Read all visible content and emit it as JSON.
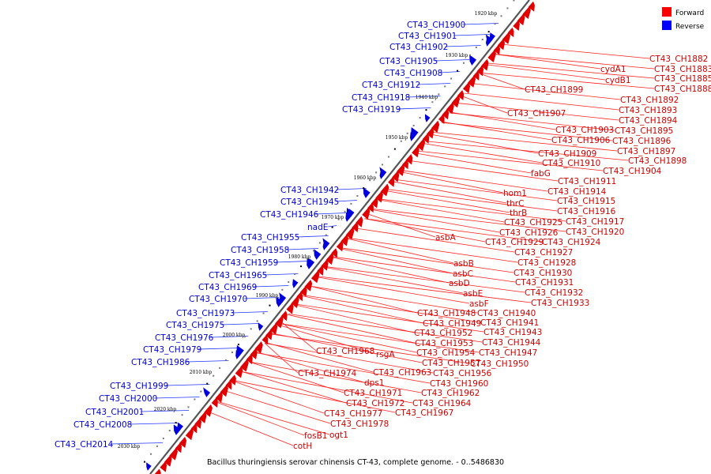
{
  "caption": "Bacillus thuringiensis serovar chinensis CT-43, complete genome. - 0..5486830",
  "legend": [
    {
      "label": "Forward",
      "color": "#ff0000"
    },
    {
      "label": "Reverse",
      "color": "#0000ff"
    }
  ],
  "colors": {
    "forward": "#e00000",
    "reverse": "#0000dd",
    "forward_label": "#cc0000",
    "reverse_label": "#0000cc",
    "backbone": "#555555"
  },
  "ticks": [
    "1920 kbp",
    "1930 kbp",
    "1940 kbp",
    "1950 kbp",
    "1960 kbp",
    "1970 kbp",
    "1980 kbp",
    "1990 kbp",
    "2000 kbp",
    "2010 kbp",
    "2020 kbp",
    "2030 kbp"
  ],
  "forward_labels": [
    "CT43_CH1882",
    "CT43_CH1883",
    "cydA1",
    "CT43_CH1885",
    "cydB1",
    "CT43_CH1888",
    "CT43_CH1899",
    "CT43_CH1892",
    "CT43_CH1893",
    "CT43_CH1907",
    "CT43_CH1894",
    "CT43_CH1903",
    "CT43_CH1895",
    "CT43_CH1906",
    "CT43_CH1896",
    "CT43_CH1897",
    "CT43_CH1909",
    "CT43_CH1898",
    "CT43_CH1910",
    "CT43_CH1904",
    "fabG",
    "CT43_CH1911",
    "hom1",
    "CT43_CH1914",
    "thrC",
    "CT43_CH1915",
    "thrB",
    "CT43_CH1916",
    "CT43_CH1925",
    "CT43_CH1917",
    "CT43_CH1926",
    "CT43_CH1920",
    "asbA",
    "CT43_CH1929",
    "CT43_CH1924",
    "CT43_CH1927",
    "asbB",
    "CT43_CH1928",
    "asbC",
    "CT43_CH1930",
    "asbD",
    "CT43_CH1931",
    "asbE",
    "CT43_CH1932",
    "asbF",
    "CT43_CH1933",
    "CT43_CH1948",
    "CT43_CH1940",
    "CT43_CH1949",
    "CT43_CH1941",
    "CT43_CH1952",
    "CT43_CH1943",
    "CT43_CH1953",
    "CT43_CH1944",
    "CT43_CH1968",
    "CT43_CH1954",
    "CT43_CH1947",
    "rsgA",
    "CT43_CH1957",
    "CT43_CH1950",
    "CT43_CH1974",
    "CT43_CH1963",
    "CT43_CH1956",
    "dps1",
    "CT43_CH1960",
    "CT43_CH1971",
    "CT43_CH1962",
    "CT43_CH1972",
    "CT43_CH1964",
    "CT43_CH1977",
    "CT43_CH1967",
    "CT43_CH1978",
    "fosB1",
    "ogt1",
    "cotH"
  ],
  "reverse_labels": [
    "CT43_CH1900",
    "CT43_CH1901",
    "CT43_CH1902",
    "CT43_CH1905",
    "CT43_CH1908",
    "CT43_CH1912",
    "CT43_CH1918",
    "CT43_CH1919",
    "CT43_CH1942",
    "CT43_CH1945",
    "CT43_CH1946",
    "nadE",
    "CT43_CH1955",
    "CT43_CH1958",
    "CT43_CH1959",
    "CT43_CH1965",
    "CT43_CH1969",
    "CT43_CH1970",
    "CT43_CH1973",
    "CT43_CH1975",
    "CT43_CH1976",
    "CT43_CH1979",
    "CT43_CH1986",
    "CT43_CH1999",
    "CT43_CH2000",
    "CT43_CH2001",
    "CT43_CH2008",
    "CT43_CH2014"
  ]
}
